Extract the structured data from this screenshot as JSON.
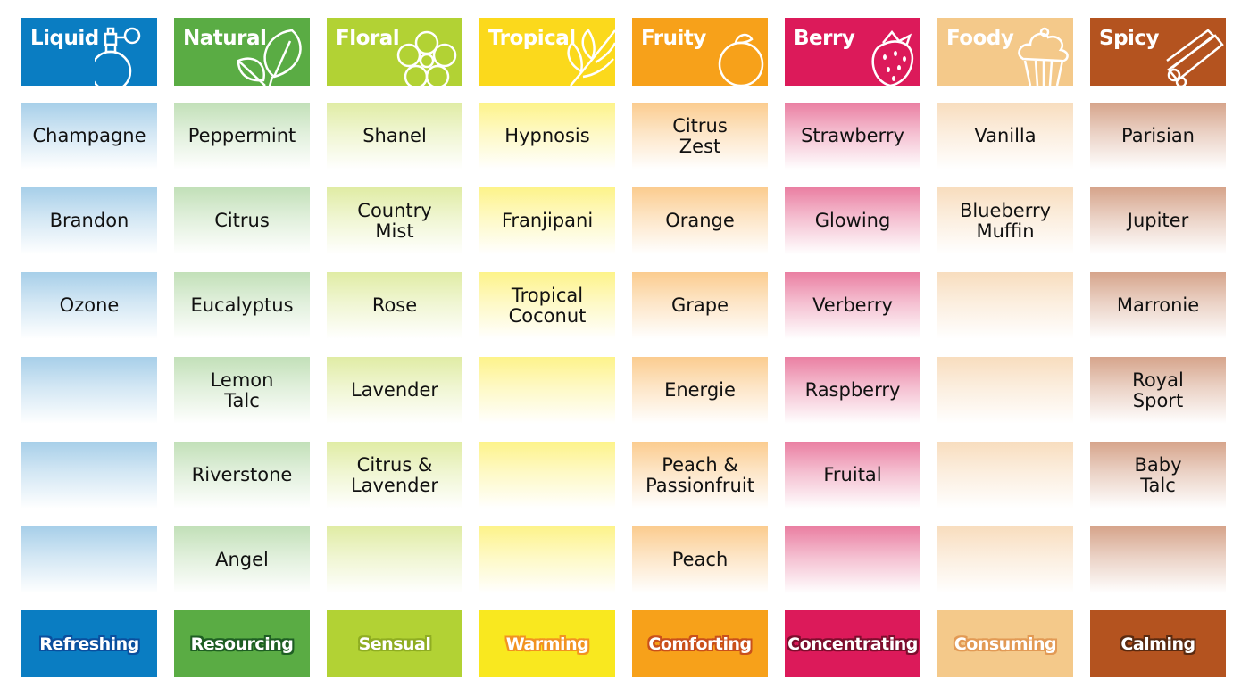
{
  "columns": [
    {
      "title": "Liquid",
      "icon": "perfume-bottle-icon",
      "color": "#0a7dc2",
      "tint": "#a7cfe9",
      "outline": "#0a4f9e",
      "footer": "Refreshing",
      "footer_color": "#0a7dc2",
      "items": [
        "Champagne",
        "Brandon",
        "Ozone",
        "",
        "",
        ""
      ]
    },
    {
      "title": "Natural",
      "icon": "leaves-icon",
      "color": "#5aac44",
      "tint": "#c2e0b8",
      "outline": "#1e5e23",
      "footer": "Resourcing",
      "footer_color": "#5aac44",
      "items": [
        "Peppermint",
        "Citrus",
        "Eucalyptus",
        "Lemon\nTalc",
        "Riverstone",
        "Angel"
      ]
    },
    {
      "title": "Floral",
      "icon": "flower-icon",
      "color": "#b2d234",
      "tint": "#e0eca4",
      "outline": "#8fad22",
      "footer": "Sensual",
      "footer_color": "#b2d234",
      "items": [
        "Shanel",
        "Country\nMist",
        "Rose",
        "Lavender",
        "Citrus &\nLavender",
        ""
      ]
    },
    {
      "title": "Tropical",
      "icon": "palm-leaf-icon",
      "color": "#fbd91c",
      "tint": "#fdf38a",
      "outline": "#f29320",
      "footer": "Warming",
      "footer_color": "#f9e81f",
      "items": [
        "Hypnosis",
        "Franjipani",
        "Tropical\nCoconut",
        "",
        "",
        ""
      ]
    },
    {
      "title": "Fruity",
      "icon": "orange-icon",
      "color": "#f7a11a",
      "tint": "#fbcc8f",
      "outline": "#c9501b",
      "footer": "Comforting",
      "footer_color": "#f7a11a",
      "items": [
        "Citrus\nZest",
        "Orange",
        "Grape",
        "Energie",
        "Peach &\nPassionfruit",
        "Peach"
      ]
    },
    {
      "title": "Berry",
      "icon": "strawberry-icon",
      "color": "#dc1a5a",
      "tint": "#ea7fa2",
      "outline": "#7d0d2d",
      "footer": "Concentrating",
      "footer_color": "#dc1a5a",
      "items": [
        "Strawberry",
        "Glowing",
        "Verberry",
        "Raspberry",
        "Fruital",
        ""
      ]
    },
    {
      "title": "Foody",
      "icon": "cupcake-icon",
      "color": "#f4c98a",
      "tint": "#f8ddbe",
      "outline": "#e29a55",
      "footer": "Consuming",
      "footer_color": "#f4c98a",
      "items": [
        "Vanilla",
        "Blueberry\nMuffin",
        "",
        "",
        "",
        ""
      ]
    },
    {
      "title": "Spicy",
      "icon": "cinnamon-icon",
      "color": "#b4531f",
      "tint": "#d6a48b",
      "outline": "#5a2a10",
      "footer": "Calming",
      "footer_color": "#b4531f",
      "items": [
        "Parisian",
        "Jupiter",
        "Marronie",
        "Royal\nSport",
        "Baby\nTalc",
        ""
      ]
    }
  ]
}
